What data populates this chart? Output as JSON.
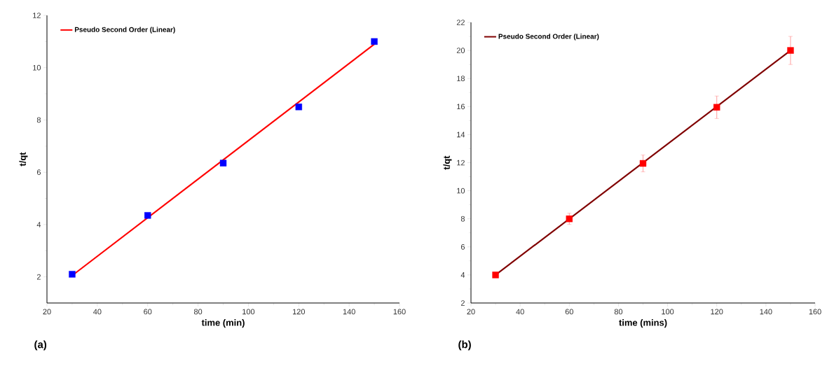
{
  "chart_data": [
    {
      "type": "scatter",
      "xlabel": "time (min)",
      "ylabel": "t/qt",
      "xlim": [
        20,
        160
      ],
      "ylim": [
        1,
        12
      ],
      "xticks": [
        20,
        40,
        60,
        80,
        100,
        120,
        140,
        160
      ],
      "yticks": [
        2,
        4,
        6,
        8,
        10,
        12
      ],
      "legend": "top left",
      "annotations": [
        "(a)"
      ],
      "series": [
        {
          "color": "#0000ff",
          "marker": "square",
          "x": [
            30,
            60,
            90,
            120,
            150
          ],
          "values": [
            2.1,
            4.35,
            6.35,
            8.5,
            11.0
          ]
        },
        {
          "type": "line",
          "name": "Pseudo Second Order (Linear)",
          "color": "#ff0000",
          "marker": "none",
          "x": [
            30,
            150
          ],
          "values": [
            2.05,
            10.9
          ]
        }
      ]
    },
    {
      "type": "scatter",
      "xlabel": "time (mins)",
      "ylabel": "t/qt",
      "xlim": [
        20,
        160
      ],
      "ylim": [
        2,
        22
      ],
      "xticks": [
        20,
        40,
        60,
        80,
        100,
        120,
        140,
        160
      ],
      "yticks": [
        2,
        4,
        6,
        8,
        10,
        12,
        14,
        16,
        18,
        20,
        22
      ],
      "legend": "top left",
      "annotations": [
        "(b)"
      ],
      "series": [
        {
          "color": "#ff0000",
          "marker": "square",
          "x": [
            30,
            60,
            90,
            120,
            150
          ],
          "values": [
            4.0,
            8.0,
            11.95,
            15.95,
            20.0
          ],
          "errors": [
            0.2,
            0.4,
            0.6,
            0.8,
            1.0
          ]
        },
        {
          "type": "line",
          "name": "Pseudo Second Order (Linear)",
          "color": "#800000",
          "marker": "none",
          "x": [
            30,
            150
          ],
          "values": [
            4.0,
            20.0
          ]
        }
      ]
    }
  ]
}
